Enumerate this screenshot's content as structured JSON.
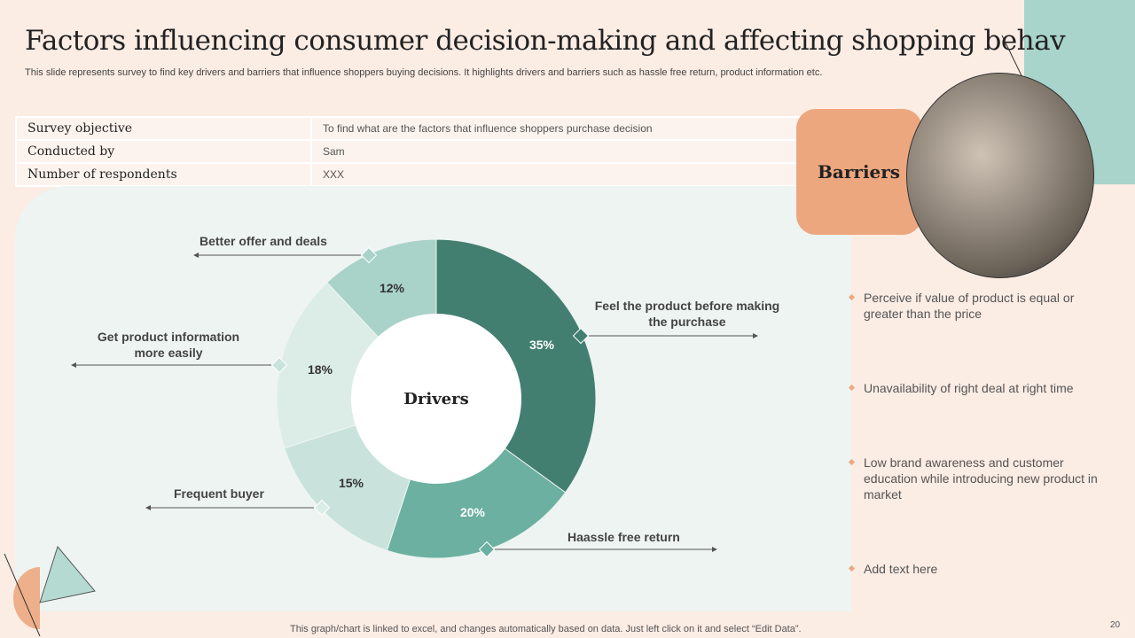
{
  "title": "Factors influencing consumer decision-making and affecting shopping behav",
  "subtitle": "This slide represents survey to find key drivers and barriers that influence shoppers buying decisions. It highlights drivers and barriers such as hassle free return, product information etc.",
  "table": [
    {
      "key": "Survey objective",
      "value": "To find what are the factors that influence shoppers purchase decision"
    },
    {
      "key": "Conducted by",
      "value": "Sam"
    },
    {
      "key": "Number of respondents",
      "value": "XXX"
    }
  ],
  "chart_data": {
    "type": "pie",
    "title": "Drivers",
    "categories": [
      "Feel the product before making the purchase",
      "Haassle free return",
      "Frequent buyer",
      "Get product information more easily",
      "Better offer and deals"
    ],
    "values": [
      35,
      20,
      15,
      18,
      12
    ],
    "labels": [
      "35%",
      "20%",
      "15%",
      "18%",
      "12%"
    ],
    "colors": [
      "#437f70",
      "#6bb0a0",
      "#c9e3dc",
      "#dcede8",
      "#a9d2c8"
    ]
  },
  "barriers": {
    "title": "Barriers",
    "items": [
      "Perceive if value of product is equal or greater than the price",
      "Unavailability of right deal at right time",
      "Low brand awareness and customer education while introducing new product in market",
      "Add text here"
    ]
  },
  "footer": "This graph/chart is linked to excel, and changes automatically based on data. Just left click on it and select “Edit Data”.",
  "page_number": "20"
}
